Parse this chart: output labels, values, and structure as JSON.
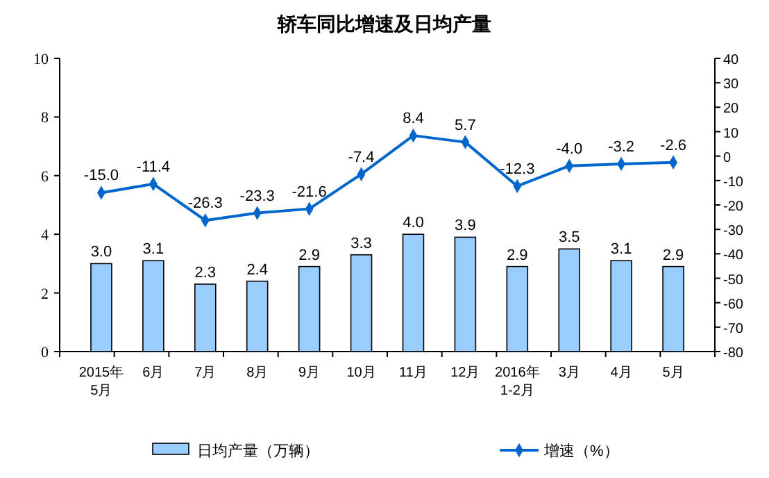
{
  "chart_data": {
    "type": "bar",
    "title": "轿车同比增速及日均产量",
    "categories": [
      "2015年\n5月",
      "6月",
      "7月",
      "8月",
      "9月",
      "10月",
      "11月",
      "12月",
      "2016年\n1-2月",
      "3月",
      "4月",
      "5月"
    ],
    "series": [
      {
        "name": "日均产量（万辆）",
        "color": "#99ccff",
        "values": [
          3.0,
          3.1,
          2.3,
          2.4,
          2.9,
          3.3,
          4.0,
          3.9,
          2.9,
          3.5,
          3.1,
          2.9
        ],
        "value_labels": [
          "3.0",
          "3.1",
          "2.3",
          "2.4",
          "2.9",
          "3.3",
          "4.0",
          "3.9",
          "2.9",
          "3.5",
          "3.1",
          "2.9"
        ]
      },
      {
        "name": "增速（%）",
        "type": "line",
        "axis": "y2",
        "color": "#0066cc",
        "marker": "diamond",
        "values": [
          -15.0,
          -11.4,
          -26.3,
          -23.3,
          -21.6,
          -7.4,
          8.4,
          5.7,
          -12.3,
          -4.0,
          -3.2,
          -2.6
        ],
        "value_labels": [
          "-15.0",
          "-11.4",
          "-26.3",
          "-23.3",
          "-21.6",
          "-7.4",
          "8.4",
          "5.7",
          "-12.3",
          "-4.0",
          "-3.2",
          "-2.6"
        ]
      }
    ],
    "ylim": [
      0,
      10
    ],
    "yticks": [
      0,
      2,
      4,
      6,
      8,
      10
    ],
    "y2lim": [
      -80,
      40
    ],
    "y2ticks": [
      -80,
      -70,
      -60,
      -50,
      -40,
      -30,
      -20,
      -10,
      0,
      10,
      20,
      30,
      40
    ],
    "legend": "bottom"
  }
}
